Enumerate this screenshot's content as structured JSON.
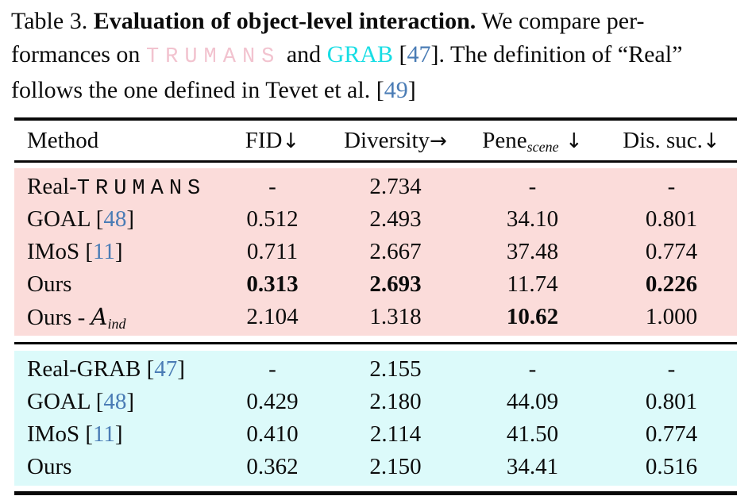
{
  "colors": {
    "trumans_pink": "#f2c3cf",
    "grab_cyan": "#17dde4",
    "citation_blue": "#4a7cb5",
    "block_pink_bg": "#fbdcda",
    "block_cyan_bg": "#dcfafa"
  },
  "caption": {
    "l1a": "Table 3. ",
    "l1b": "Evaluation of object-level interaction.",
    "l1c": " We compare per-",
    "l2a": "formances on ",
    "l2b": "TRUMANS",
    "l2c": " and ",
    "l2d": "GRAB",
    "l2e": " [",
    "l2f": "47",
    "l2g": "]. The definition of “Real”",
    "l3a": "follows the one defined in Tevet et al. [",
    "l3b": "49",
    "l3c": "]"
  },
  "table": {
    "header": {
      "method": "Method",
      "fid": "FID",
      "fid_arrow": "↓",
      "diversity": "Diversity",
      "diversity_arrow": "→",
      "pene": "Pene",
      "pene_sub": "scene",
      "pene_arrow": " ↓",
      "dis": "Dis. suc.",
      "dis_arrow": "↓"
    },
    "blocks": [
      {
        "name": "TRUMANS",
        "rows": [
          {
            "pre": "Real-",
            "mono": "TRUMANS",
            "c1": "-",
            "c2": "2.734",
            "c3": "-",
            "c4": "-"
          },
          {
            "pre": "GOAL [",
            "ref": "48",
            "post": "]",
            "c1": "0.512",
            "c2": "2.493",
            "c3": "34.10",
            "c4": "0.801"
          },
          {
            "pre": "IMoS [",
            "ref": "11",
            "post": "]",
            "c1": "0.711",
            "c2": "2.667",
            "c3": "37.48",
            "c4": "0.774"
          },
          {
            "pre": "Ours",
            "c1": "0.313",
            "c2": "2.693",
            "c3": "11.74",
            "c4": "0.226"
          },
          {
            "pre": "Ours - ",
            "math": "A",
            "math_sub": "ind",
            "c1": "2.104",
            "c2": "1.318",
            "c3": "10.62",
            "c4": "1.000"
          }
        ]
      },
      {
        "name": "GRAB",
        "rows": [
          {
            "pre": "Real-GRAB [",
            "ref": "47",
            "post": "]",
            "c1": "-",
            "c2": "2.155",
            "c3": "-",
            "c4": "-"
          },
          {
            "pre": "GOAL [",
            "ref": "48",
            "post": "]",
            "c1": "0.429",
            "c2": "2.180",
            "c3": "44.09",
            "c4": "0.801"
          },
          {
            "pre": "IMoS [",
            "ref": "11",
            "post": "]",
            "c1": "0.410",
            "c2": "2.114",
            "c3": "41.50",
            "c4": "0.774"
          },
          {
            "pre": "Ours",
            "c1": "0.362",
            "c2": "2.150",
            "c3": "34.41",
            "c4": "0.516"
          }
        ]
      }
    ]
  }
}
